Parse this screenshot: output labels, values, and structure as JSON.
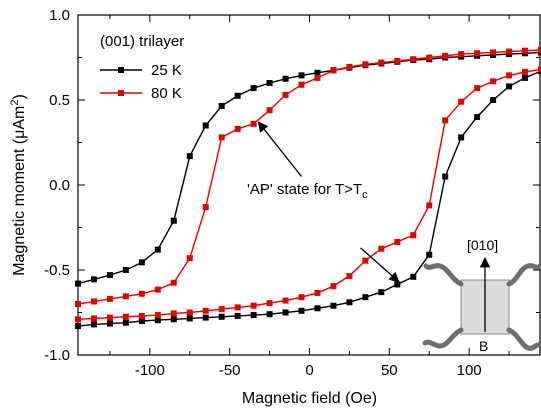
{
  "chart_data": {
    "type": "line",
    "xlabel": "Magnetic field (Oe)",
    "ylabel_main": "Magnetic moment (",
    "ylabel_unit_mu": "μ",
    "ylabel_unit_am": "Am",
    "ylabel_unit_exp": "2",
    "ylabel_close": ")",
    "xlim": [
      -145,
      145
    ],
    "ylim": [
      -1.0,
      1.0
    ],
    "xticks": [
      -100,
      -50,
      0,
      50,
      100
    ],
    "xtick_labels": [
      "-100",
      "-50",
      "0",
      "50",
      "100"
    ],
    "yticks": [
      -1.0,
      -0.5,
      0.0,
      0.5,
      1.0
    ],
    "ytick_labels": [
      "-1.0",
      "-0.5",
      "0.0",
      "0.5",
      "1.0"
    ],
    "legend": {
      "title": "(001) trilayer",
      "placement": "top-left",
      "entries": [
        "25 K",
        "80 K"
      ]
    },
    "series": [
      {
        "name": "25 K",
        "color": "#000000",
        "branches": [
          {
            "x": [
              -145,
              -135,
              -125,
              -115,
              -105,
              -95,
              -85,
              -75,
              -65,
              -55,
              -45,
              -35,
              -25,
              -15,
              -5,
              5,
              15,
              25,
              35,
              45,
              55,
              65,
              75,
              85,
              95,
              105,
              115,
              125,
              135,
              145
            ],
            "y": [
              -0.83,
              -0.82,
              -0.815,
              -0.81,
              -0.8,
              -0.795,
              -0.79,
              -0.785,
              -0.78,
              -0.775,
              -0.77,
              -0.765,
              -0.76,
              -0.75,
              -0.74,
              -0.725,
              -0.71,
              -0.69,
              -0.66,
              -0.63,
              -0.585,
              -0.54,
              -0.41,
              0.05,
              0.28,
              0.4,
              0.5,
              0.58,
              0.63,
              0.67
            ]
          },
          {
            "x": [
              145,
              135,
              125,
              115,
              105,
              95,
              85,
              75,
              65,
              55,
              45,
              35,
              25,
              15,
              5,
              -5,
              -15,
              -25,
              -35,
              -45,
              -55,
              -65,
              -75,
              -85,
              -95,
              -105,
              -115,
              -125,
              -135,
              -145
            ],
            "y": [
              0.78,
              0.775,
              0.77,
              0.765,
              0.76,
              0.755,
              0.75,
              0.74,
              0.735,
              0.725,
              0.715,
              0.705,
              0.69,
              0.675,
              0.66,
              0.645,
              0.625,
              0.6,
              0.57,
              0.525,
              0.465,
              0.35,
              0.17,
              -0.21,
              -0.38,
              -0.455,
              -0.5,
              -0.53,
              -0.555,
              -0.58
            ]
          }
        ]
      },
      {
        "name": "80 K",
        "color": "#e60000",
        "branches": [
          {
            "x": [
              -145,
              -135,
              -125,
              -115,
              -105,
              -95,
              -85,
              -75,
              -65,
              -55,
              -45,
              -35,
              -25,
              -15,
              -5,
              5,
              15,
              25,
              35,
              45,
              55,
              65,
              75,
              85,
              95,
              105,
              115,
              125,
              135,
              145
            ],
            "y": [
              -0.79,
              -0.785,
              -0.78,
              -0.775,
              -0.77,
              -0.765,
              -0.755,
              -0.75,
              -0.74,
              -0.73,
              -0.72,
              -0.71,
              -0.695,
              -0.68,
              -0.66,
              -0.635,
              -0.595,
              -0.535,
              -0.445,
              -0.375,
              -0.335,
              -0.295,
              -0.12,
              0.38,
              0.49,
              0.57,
              0.61,
              0.645,
              0.665,
              0.68
            ]
          },
          {
            "x": [
              145,
              135,
              125,
              115,
              105,
              95,
              85,
              75,
              65,
              55,
              45,
              35,
              25,
              15,
              5,
              -5,
              -15,
              -25,
              -35,
              -45,
              -55,
              -65,
              -75,
              -85,
              -95,
              -105,
              -115,
              -125,
              -135,
              -145
            ],
            "y": [
              0.795,
              0.79,
              0.785,
              0.78,
              0.775,
              0.77,
              0.76,
              0.75,
              0.74,
              0.73,
              0.72,
              0.71,
              0.695,
              0.675,
              0.63,
              0.59,
              0.53,
              0.44,
              0.36,
              0.33,
              0.28,
              -0.13,
              -0.43,
              -0.575,
              -0.615,
              -0.64,
              -0.655,
              -0.67,
              -0.685,
              -0.7
            ]
          }
        ]
      }
    ],
    "annotation": {
      "text_main": "'AP' state for T>T",
      "text_sub": "c",
      "arrows": [
        {
          "from": [
            -5,
            0.05
          ],
          "to": [
            -32,
            0.37
          ]
        },
        {
          "from": [
            32,
            -0.37
          ],
          "to": [
            56,
            -0.57
          ]
        }
      ]
    },
    "inset": {
      "direction_label": "[010]",
      "field_label": "B"
    }
  }
}
